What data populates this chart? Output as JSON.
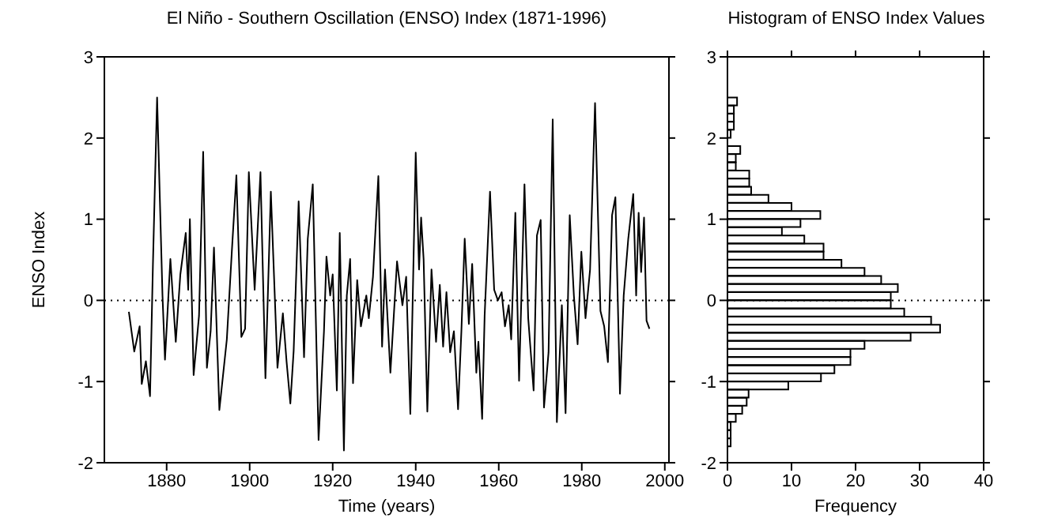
{
  "chart_data": [
    {
      "type": "line",
      "title": "El Niño - Southern Oscillation (ENSO) Index (1871-1996)",
      "xlabel": "Time (years)",
      "ylabel": "ENSO Index",
      "color": "#000000",
      "line_style": "solid",
      "marker": "none",
      "x": [
        1870.9,
        1872.2,
        1873.5,
        1874,
        1875,
        1876,
        1876.7,
        1877.7,
        1879,
        1879.6,
        1880.9,
        1882.2,
        1883.3,
        1884.6,
        1885.2,
        1885.6,
        1886.5,
        1887.8,
        1888.8,
        1889.7,
        1890.6,
        1891.4,
        1892.7,
        1894.5,
        1895.7,
        1896.8,
        1898,
        1898.9,
        1899.8,
        1901.2,
        1902.6,
        1903.8,
        1905.1,
        1906.7,
        1908,
        1908.9,
        1909.8,
        1910.6,
        1911.8,
        1913.1,
        1914,
        1915.2,
        1916.6,
        1917.9,
        1918.5,
        1919.4,
        1920,
        1921,
        1921.7,
        1922.7,
        1923.4,
        1924.2,
        1924.9,
        1925.9,
        1926.8,
        1928.1,
        1928.7,
        1929.7,
        1931,
        1931.9,
        1932.6,
        1933.9,
        1935.5,
        1936.8,
        1937.7,
        1938.7,
        1939.5,
        1940,
        1940.8,
        1941.3,
        1941.9,
        1942.8,
        1943.8,
        1944.9,
        1945.8,
        1946.6,
        1947.4,
        1948.3,
        1949.2,
        1950.2,
        1951,
        1951.8,
        1952.8,
        1953.6,
        1954.6,
        1955.1,
        1956,
        1956.6,
        1957.9,
        1958.9,
        1959.8,
        1960.7,
        1961.5,
        1962.4,
        1963,
        1964,
        1964.9,
        1966.2,
        1967.1,
        1968.4,
        1969.2,
        1970.1,
        1970.9,
        1972,
        1973,
        1974,
        1975.2,
        1976.1,
        1977.1,
        1978.1,
        1979,
        1979.9,
        1980.9,
        1982,
        1983.2,
        1984.5,
        1985.4,
        1986.3,
        1987.3,
        1988.1,
        1989.2,
        1990.1,
        1991.2,
        1992.4,
        1993.1,
        1993.7,
        1994.3,
        1995,
        1995.6,
        1996.3
      ],
      "values": [
        -0.14,
        -0.63,
        -0.32,
        -1.03,
        -0.75,
        -1.18,
        0.45,
        2.5,
        0.06,
        -0.73,
        0.51,
        -0.51,
        0.32,
        0.83,
        0.13,
        1.0,
        -0.92,
        -0.19,
        1.83,
        -0.83,
        -0.38,
        0.65,
        -1.35,
        -0.48,
        0.6,
        1.54,
        -0.45,
        -0.35,
        1.58,
        0.13,
        1.58,
        -0.96,
        1.34,
        -0.83,
        -0.16,
        -0.76,
        -1.27,
        -0.62,
        1.22,
        -0.7,
        0.76,
        1.43,
        -1.72,
        -0.38,
        0.54,
        0.06,
        0.32,
        -1.11,
        0.83,
        -1.85,
        0.06,
        0.51,
        -1.02,
        0.25,
        -0.32,
        0.06,
        -0.22,
        0.29,
        1.53,
        -0.57,
        0.38,
        -0.89,
        0.48,
        -0.06,
        0.29,
        -1.4,
        0.57,
        1.82,
        0.38,
        1.02,
        0.51,
        -1.37,
        0.38,
        -0.51,
        0.19,
        -0.57,
        0.1,
        -0.64,
        -0.38,
        -1.34,
        -0.38,
        0.76,
        -0.29,
        0.45,
        -0.89,
        -0.51,
        -1.46,
        -0.19,
        1.34,
        0.13,
        0,
        0.1,
        -0.32,
        -0.06,
        -0.48,
        1.08,
        -0.99,
        1.43,
        -0.22,
        -1.11,
        0.8,
        0.99,
        -1.32,
        -0.64,
        2.23,
        -1.5,
        -0.06,
        -1.39,
        1.05,
        0.06,
        -0.54,
        0.6,
        -0.22,
        0.38,
        2.43,
        -0.13,
        -0.32,
        -0.76,
        1.05,
        1.27,
        -1.15,
        0.06,
        0.76,
        1.31,
        0.06,
        1.08,
        0.35,
        1.02,
        -0.25,
        -0.35
      ],
      "xlim": [
        1865,
        2001
      ],
      "xticks": [
        1880,
        1900,
        1920,
        1940,
        1960,
        1980,
        2000
      ],
      "ylim": [
        -2,
        3
      ],
      "yticks": [
        -2,
        -1,
        0,
        1,
        2,
        3
      ],
      "ref_lines": [
        {
          "axis": "y",
          "value": 0,
          "line_style": "dotted",
          "color": "#000000"
        }
      ]
    },
    {
      "type": "histogram",
      "orientation": "horizontal",
      "title": "Histogram of ENSO Index Values",
      "xlabel": "Frequency",
      "color": "#000000",
      "bins": [
        -1.8,
        -1.7,
        -1.6,
        -1.5,
        -1.4,
        -1.3,
        -1.2,
        -1.1,
        -1.0,
        -0.9,
        -0.8,
        -0.7,
        -0.6,
        -0.5,
        -0.4,
        -0.3,
        -0.2,
        -0.1,
        0.0,
        0.1,
        0.2,
        0.3,
        0.4,
        0.5,
        0.6,
        0.7,
        0.8,
        0.9,
        1.0,
        1.1,
        1.2,
        1.3,
        1.4,
        1.5,
        1.6,
        1.7,
        1.8,
        1.9,
        2.0,
        2.1,
        2.2,
        2.3,
        2.4,
        2.5
      ],
      "values": [
        0.5,
        0.5,
        0.5,
        1.3,
        2.3,
        3,
        3.3,
        9.5,
        14.6,
        16.7,
        19.2,
        19.2,
        21.4,
        28.6,
        33.2,
        31.8,
        27.6,
        25.5,
        25.5,
        26.6,
        24,
        21.4,
        17.8,
        15,
        15,
        12,
        8.5,
        11.4,
        14.5,
        10,
        6.4,
        3.7,
        3.4,
        3.4,
        1.3,
        1.3,
        2,
        0,
        0.5,
        1,
        1,
        1,
        1.5
      ],
      "xlim": [
        0,
        40
      ],
      "xticks": [
        0,
        10,
        20,
        30,
        40
      ],
      "ylim": [
        -2,
        3
      ],
      "yticks": [
        -2,
        -1,
        0,
        1,
        2,
        3
      ],
      "ref_lines": [
        {
          "axis": "y",
          "value": 0,
          "line_style": "dotted",
          "color": "#000000"
        }
      ]
    }
  ]
}
